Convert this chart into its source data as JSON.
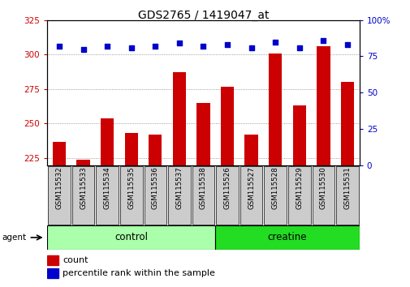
{
  "title": "GDS2765 / 1419047_at",
  "samples": [
    "GSM115532",
    "GSM115533",
    "GSM115534",
    "GSM115535",
    "GSM115536",
    "GSM115537",
    "GSM115538",
    "GSM115526",
    "GSM115527",
    "GSM115528",
    "GSM115529",
    "GSM115530",
    "GSM115531"
  ],
  "counts": [
    237,
    224,
    254,
    243,
    242,
    287,
    265,
    277,
    242,
    301,
    263,
    306,
    280
  ],
  "percentile_ranks": [
    82,
    80,
    82,
    81,
    82,
    84,
    82,
    83,
    81,
    85,
    81,
    86,
    83
  ],
  "groups": [
    {
      "label": "control",
      "start": 0,
      "end": 7,
      "color": "#AAFFAA"
    },
    {
      "label": "creatine",
      "start": 7,
      "end": 13,
      "color": "#22DD22"
    }
  ],
  "ylim_left": [
    220,
    325
  ],
  "ylim_right": [
    0,
    100
  ],
  "yticks_left": [
    225,
    250,
    275,
    300,
    325
  ],
  "yticks_right": [
    0,
    25,
    50,
    75,
    100
  ],
  "bar_color": "#CC0000",
  "dot_color": "#0000CC",
  "grid_color": "#808080",
  "agent_label": "agent",
  "legend_count_label": "count",
  "legend_percentile_label": "percentile rank within the sample",
  "tick_color_left": "#CC0000",
  "tick_color_right": "#0000CC",
  "xlabel_color": "#000000",
  "title_fontsize": 10,
  "axis_fontsize": 7.5,
  "legend_fontsize": 8
}
